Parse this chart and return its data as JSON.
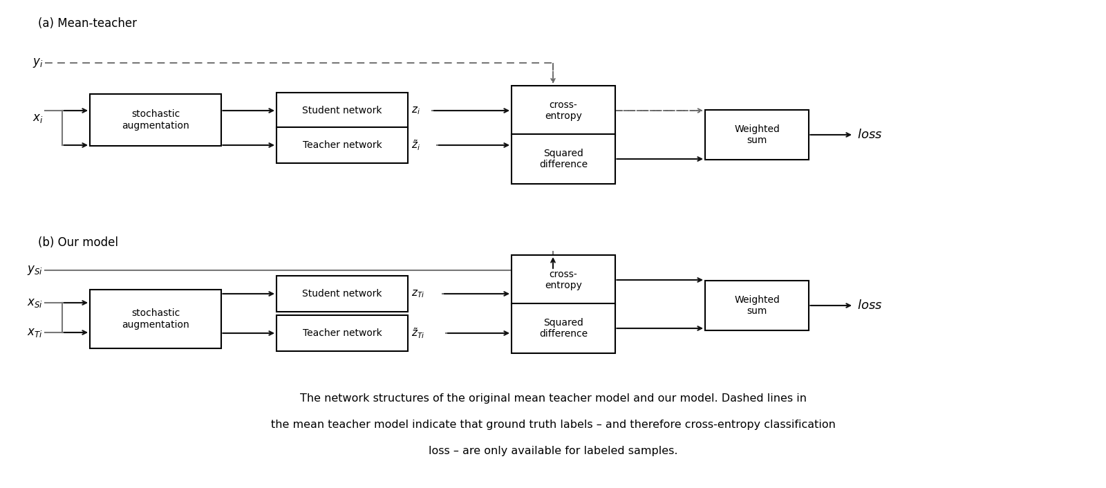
{
  "title_a": "(a) Mean-teacher",
  "title_b": "(b) Our model",
  "caption_line1": "The network structures of the original mean teacher model and our model. Dashed lines in",
  "caption_line2": "the mean teacher model indicate that ground truth labels – and therefore cross-entropy classification",
  "caption_line3": "loss – are only available for labeled samples.",
  "bg_color": "#ffffff",
  "box_facecolor": "#ffffff",
  "box_edgecolor": "#000000",
  "line_color": "#777777",
  "arrow_color": "#111111",
  "dash_color": "#666666"
}
